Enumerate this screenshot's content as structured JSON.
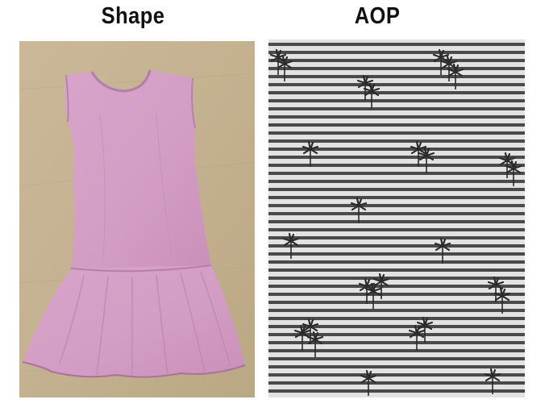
{
  "left_panel": {
    "title": "Shape"
  },
  "right_panel": {
    "title": "AOP"
  },
  "colors": {
    "dress": "#d39cc4",
    "background_wood": "#c7b596",
    "stripe_dark": "#4a4a4a",
    "stripe_light": "#e2e2e2",
    "print": "#2a2a2a"
  },
  "icons": [
    "palm-tree-motif"
  ]
}
